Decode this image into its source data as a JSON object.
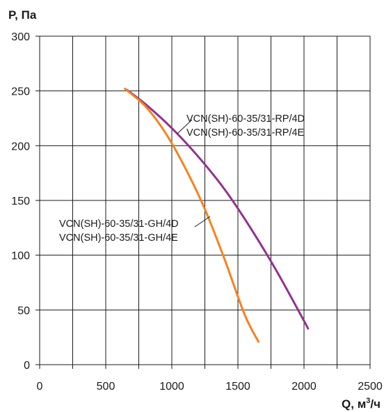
{
  "chart_data": {
    "type": "line",
    "ylabel": "P, Па",
    "xlabel_main": "Q, м",
    "xlabel_sup": "3",
    "xlabel_tail": "/ч",
    "xlim": [
      0,
      2500
    ],
    "ylim": [
      0,
      300
    ],
    "x_ticks": [
      0,
      500,
      1000,
      1500,
      2000,
      2500
    ],
    "y_ticks": [
      0,
      50,
      100,
      150,
      200,
      250,
      300
    ],
    "x_grid": [
      0,
      250,
      500,
      750,
      1000,
      1250,
      1500,
      1750,
      2000,
      2250,
      2500
    ],
    "y_grid": [
      0,
      50,
      100,
      150,
      200,
      250,
      300
    ],
    "grid": true,
    "series": [
      {
        "labels": [
          "VCN(SH)-60-35/31-RP/4D",
          "VCN(SH)-60-35/31-RP/4E"
        ],
        "color": "#93318f",
        "x": [
          660,
          800,
          1000,
          1200,
          1400,
          1600,
          1800,
          2000,
          2030
        ],
        "y": [
          251,
          238,
          216,
          190,
          160,
          124,
          84,
          40,
          33
        ]
      },
      {
        "labels": [
          "VCN(SH)-60-35/31-GH/4D",
          "VCN(SH)-60-35/31-GH/4E"
        ],
        "color": "#f58220",
        "x": [
          645,
          800,
          950,
          1100,
          1250,
          1400,
          1550,
          1655
        ],
        "y": [
          252,
          236,
          212,
          180,
          142,
          96,
          46,
          21
        ]
      }
    ]
  }
}
